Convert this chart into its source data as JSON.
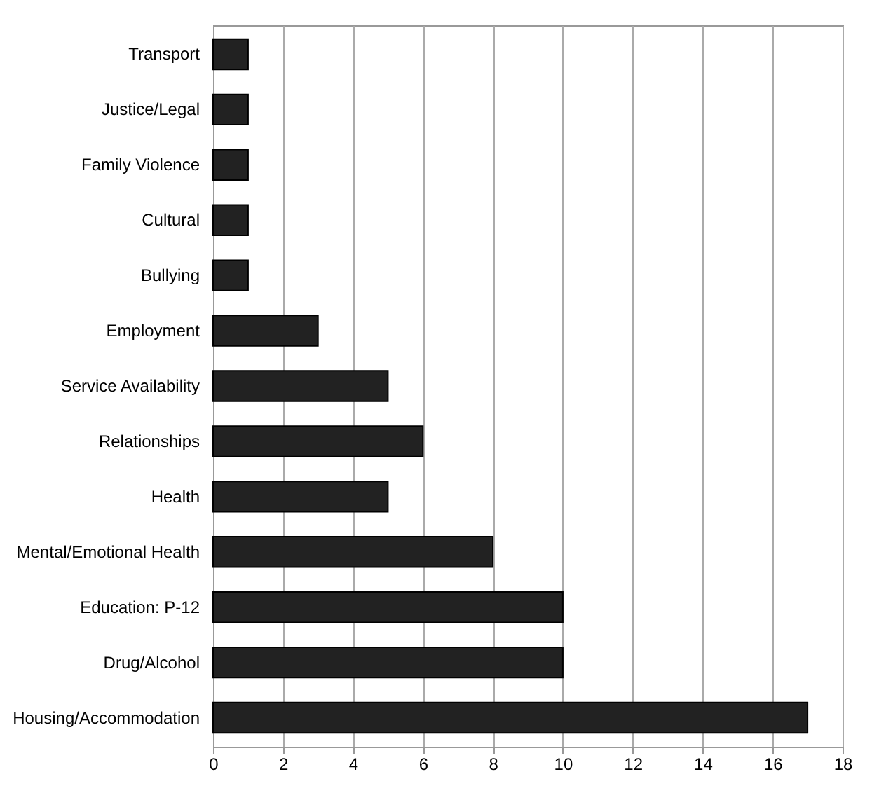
{
  "chart_data": {
    "type": "bar",
    "orientation": "horizontal",
    "categories": [
      "Transport",
      "Justice/Legal",
      "Family Violence",
      "Cultural",
      "Bullying",
      "Employment",
      "Service Availability",
      "Relationships",
      "Health",
      "Mental/Emotional Health",
      "Education: P-12",
      "Drug/Alcohol",
      "Housing/Accommodation"
    ],
    "values": [
      1,
      1,
      1,
      1,
      1,
      3,
      5,
      6,
      5,
      8,
      10,
      10,
      17
    ],
    "color": "#222222",
    "xlim": [
      0,
      18
    ],
    "xticks": [
      0,
      2,
      4,
      6,
      8,
      10,
      12,
      14,
      16,
      18
    ],
    "grid": "x"
  }
}
